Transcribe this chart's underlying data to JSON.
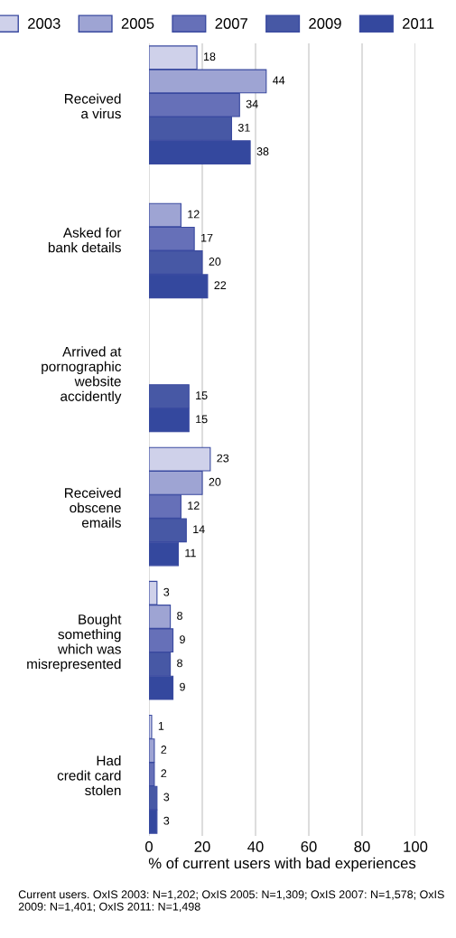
{
  "chart_data": {
    "type": "bar",
    "orientation": "horizontal",
    "categories": [
      "Received\na virus",
      "Asked for\nbank details",
      "Arrived at\npornographic\nwebsite\naccidently",
      "Received\nobscene\nemails",
      "Bought\nsomething\nwhich was\nmisrepresented",
      "Had\ncredit card\nstolen"
    ],
    "series": [
      {
        "name": "2003",
        "color": "#cfd1ea",
        "values": [
          18,
          null,
          null,
          23,
          3,
          1
        ]
      },
      {
        "name": "2005",
        "color": "#9ea4d3",
        "values": [
          44,
          12,
          null,
          20,
          8,
          2
        ]
      },
      {
        "name": "2007",
        "color": "#6670b8",
        "values": [
          34,
          17,
          null,
          12,
          9,
          2
        ]
      },
      {
        "name": "2009",
        "color": "#4758a5",
        "values": [
          31,
          20,
          15,
          14,
          8,
          3
        ]
      },
      {
        "name": "2011",
        "color": "#34489e",
        "values": [
          38,
          22,
          15,
          11,
          9,
          3
        ]
      }
    ],
    "xlabel": "% of current users with bad experiences",
    "xlim": [
      0,
      100
    ],
    "xticks": [
      0,
      20,
      40,
      60,
      80,
      100
    ],
    "grid": "x",
    "legend": "top",
    "data_labels": true,
    "annotations": [
      "Current users. OxIS 2003: N=1,202; OxIS 2005: N=1,309; OxIS 2007: N=1,578; OxIS 2009: N=1,401; OxIS 2011: N=1,498"
    ]
  }
}
